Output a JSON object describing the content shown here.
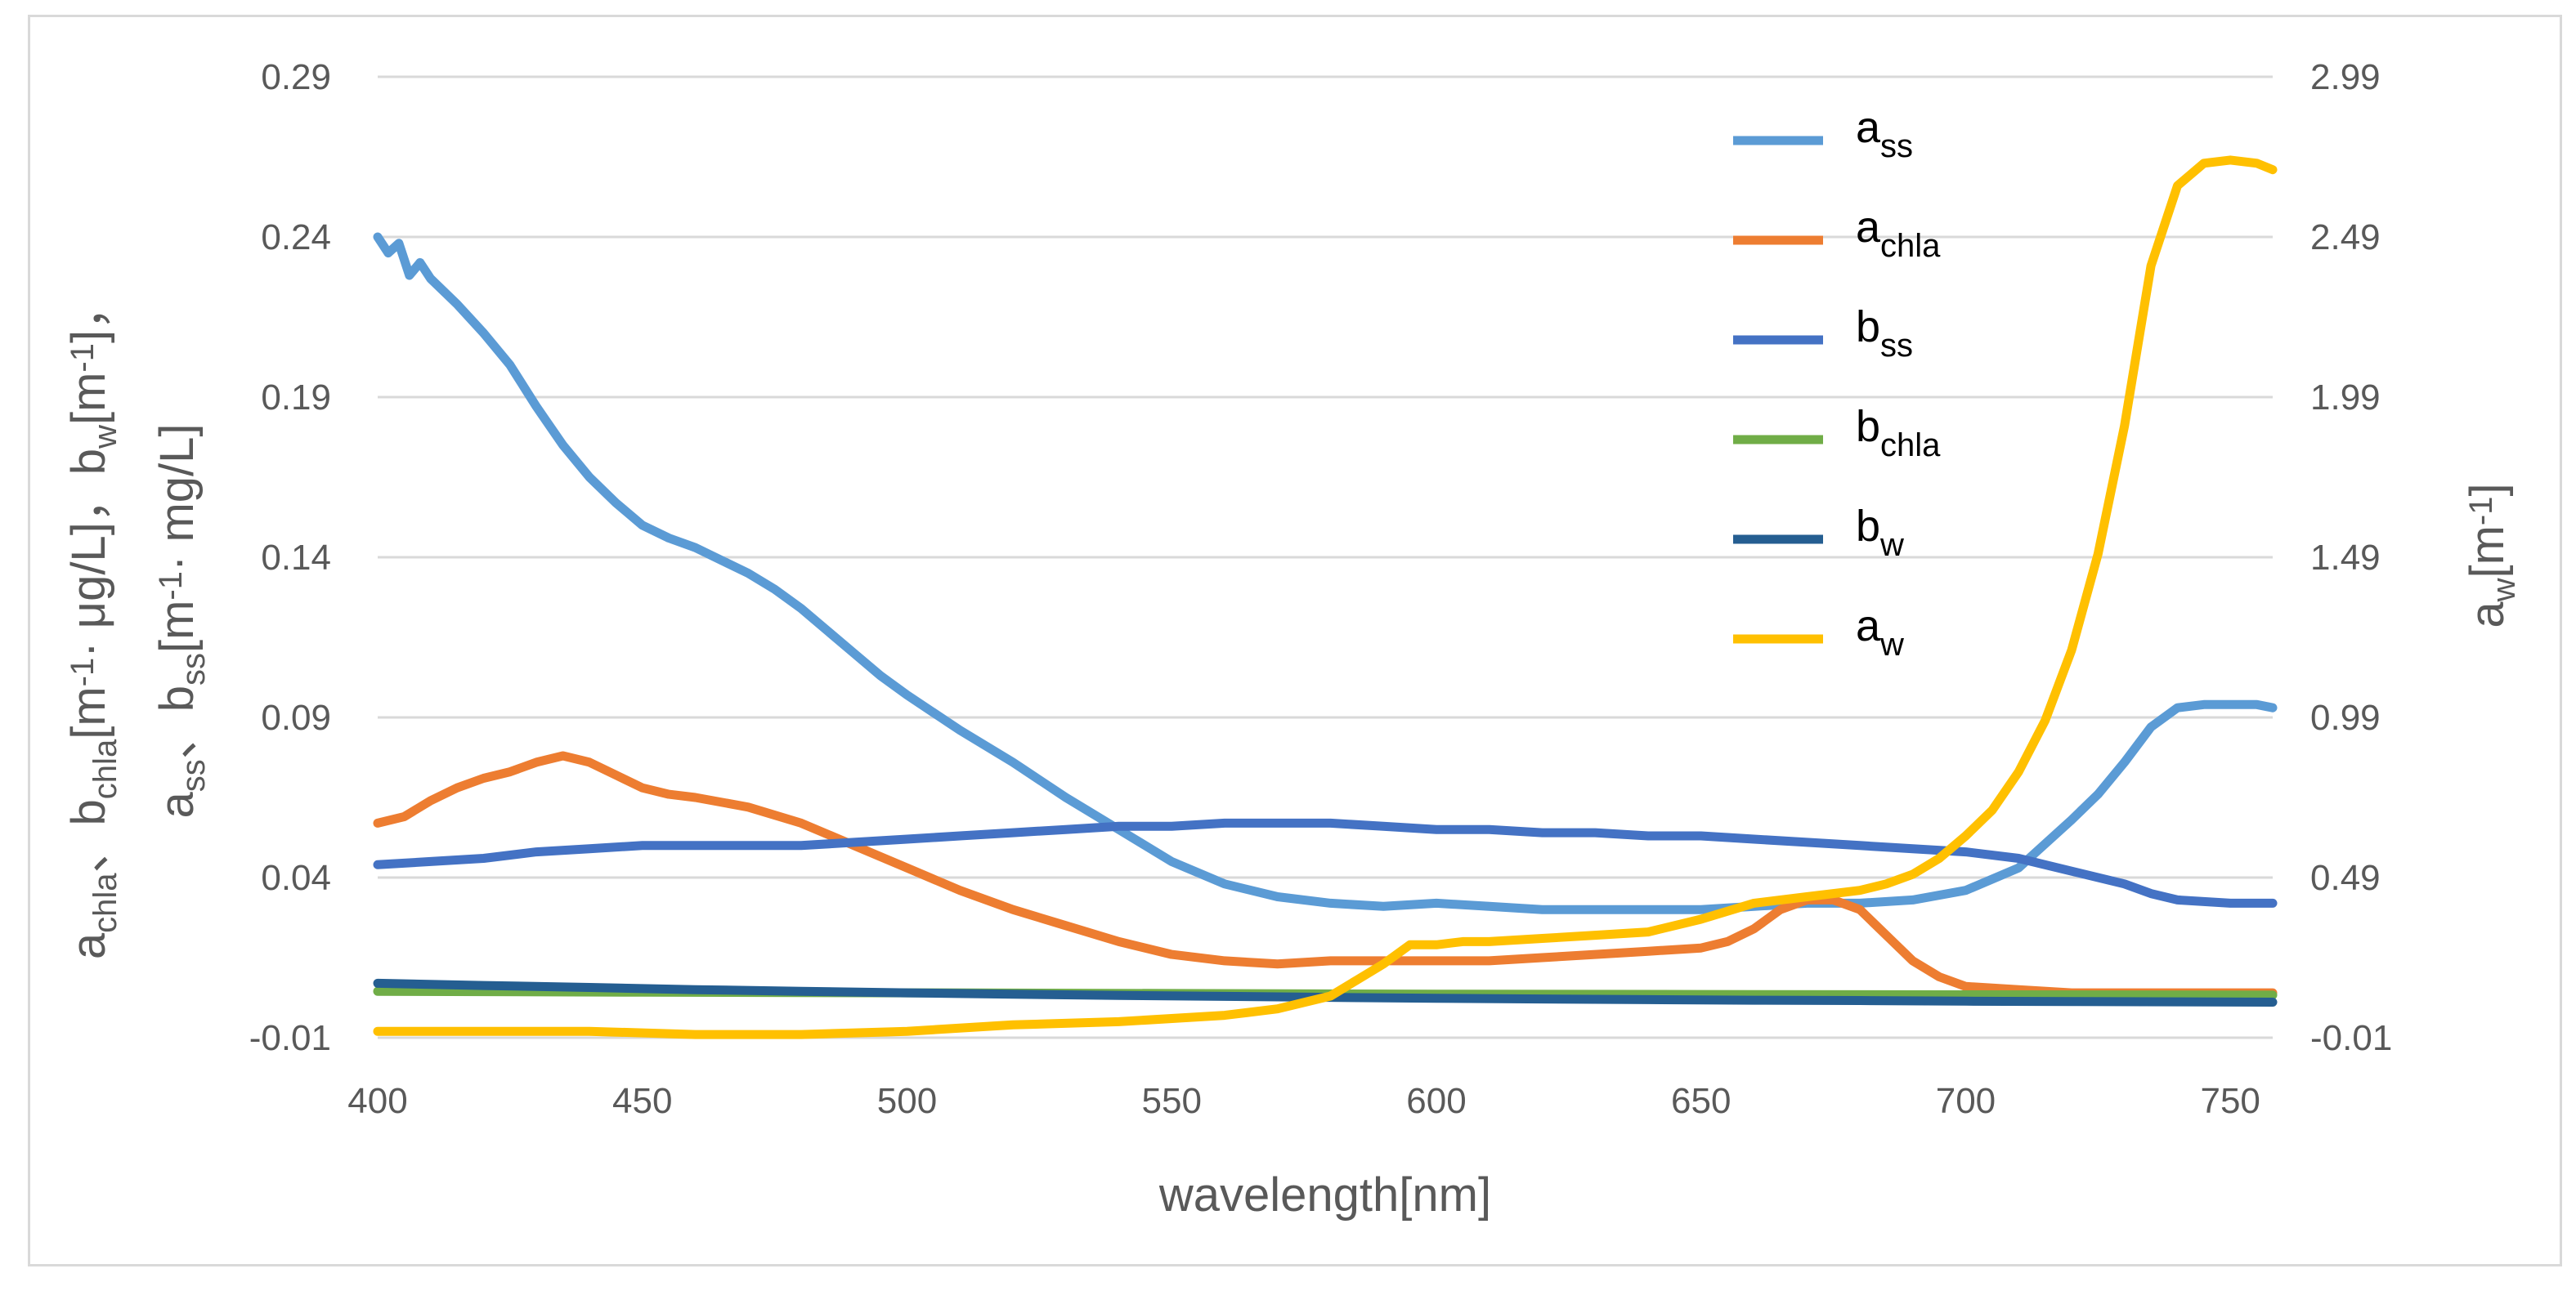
{
  "chart_data": {
    "type": "line",
    "title": "",
    "xlabel": "wavelength[nm]",
    "ylabel": {
      "parts": [
        {
          "t": "a"
        },
        {
          "t": "chla",
          "sub": true
        },
        {
          "t": "、b"
        },
        {
          "t": "chla",
          "sub": true
        },
        {
          "t": "[m"
        },
        {
          "t": "-1",
          "sup": true
        },
        {
          "t": "· μg/L]，b"
        },
        {
          "t": "w",
          "sub": true
        },
        {
          "t": "[m"
        },
        {
          "t": "-1",
          "sup": true
        },
        {
          "t": "]，"
        }
      ]
    },
    "ylabel2": {
      "parts": [
        {
          "t": "a"
        },
        {
          "t": "ss",
          "sub": true
        },
        {
          "t": "、b"
        },
        {
          "t": "ss",
          "sub": true
        },
        {
          "t": "[m"
        },
        {
          "t": "-1",
          "sup": true
        },
        {
          "t": "· mg/L]"
        }
      ]
    },
    "y2label": {
      "parts": [
        {
          "t": "a"
        },
        {
          "t": "w",
          "sub": true
        },
        {
          "t": "[m"
        },
        {
          "t": "-1",
          "sup": true
        },
        {
          "t": "]"
        }
      ]
    },
    "xlim": [
      400,
      758
    ],
    "ylim": [
      -0.01,
      0.29
    ],
    "y2lim": [
      -0.01,
      2.99
    ],
    "xticks": [
      "400",
      "450",
      "500",
      "550",
      "600",
      "650",
      "700",
      "750"
    ],
    "yticks": [
      "-0.01",
      "0.04",
      "0.09",
      "0.14",
      "0.19",
      "0.24",
      "0.29"
    ],
    "y2ticks": [
      "-0.01",
      "0.49",
      "0.99",
      "1.49",
      "1.99",
      "2.49",
      "2.99"
    ],
    "legend_position": "top-right",
    "series": [
      {
        "name": "a_ss",
        "label_main": "a",
        "label_sub": "ss",
        "axis": "left",
        "color": "#5b9bd5",
        "x": [
          400,
          402,
          404,
          406,
          408,
          410,
          415,
          420,
          425,
          430,
          435,
          440,
          445,
          450,
          455,
          460,
          465,
          470,
          475,
          480,
          485,
          490,
          495,
          500,
          510,
          520,
          530,
          540,
          550,
          560,
          570,
          580,
          590,
          600,
          610,
          620,
          630,
          640,
          650,
          660,
          670,
          680,
          690,
          700,
          710,
          720,
          725,
          730,
          735,
          740,
          745,
          750,
          755,
          758
        ],
        "y": [
          0.24,
          0.235,
          0.238,
          0.228,
          0.232,
          0.227,
          0.219,
          0.21,
          0.2,
          0.187,
          0.175,
          0.165,
          0.157,
          0.15,
          0.146,
          0.143,
          0.139,
          0.135,
          0.13,
          0.124,
          0.117,
          0.11,
          0.103,
          0.097,
          0.086,
          0.076,
          0.065,
          0.055,
          0.045,
          0.038,
          0.034,
          0.032,
          0.031,
          0.032,
          0.031,
          0.03,
          0.03,
          0.03,
          0.03,
          0.031,
          0.032,
          0.032,
          0.033,
          0.036,
          0.043,
          0.058,
          0.066,
          0.076,
          0.087,
          0.093,
          0.094,
          0.094,
          0.094,
          0.093
        ]
      },
      {
        "name": "a_chla",
        "label_main": "a",
        "label_sub": "chla",
        "axis": "left",
        "color": "#ed7d31",
        "x": [
          400,
          405,
          410,
          415,
          420,
          425,
          430,
          435,
          440,
          445,
          450,
          455,
          460,
          470,
          480,
          490,
          500,
          510,
          520,
          530,
          540,
          550,
          560,
          570,
          580,
          590,
          600,
          610,
          620,
          630,
          640,
          650,
          655,
          660,
          665,
          670,
          675,
          680,
          685,
          690,
          695,
          700,
          710,
          720,
          730,
          740,
          750,
          758
        ],
        "y": [
          0.057,
          0.059,
          0.064,
          0.068,
          0.071,
          0.073,
          0.076,
          0.078,
          0.076,
          0.072,
          0.068,
          0.066,
          0.065,
          0.062,
          0.057,
          0.05,
          0.043,
          0.036,
          0.03,
          0.025,
          0.02,
          0.016,
          0.014,
          0.013,
          0.014,
          0.014,
          0.014,
          0.014,
          0.015,
          0.016,
          0.017,
          0.018,
          0.02,
          0.024,
          0.03,
          0.033,
          0.033,
          0.03,
          0.022,
          0.014,
          0.009,
          0.006,
          0.005,
          0.004,
          0.004,
          0.004,
          0.004,
          0.004
        ]
      },
      {
        "name": "b_ss",
        "label_main": "b",
        "label_sub": "ss",
        "axis": "left",
        "color": "#4472c4",
        "x": [
          400,
          410,
          420,
          430,
          440,
          450,
          460,
          470,
          480,
          490,
          500,
          510,
          520,
          530,
          540,
          550,
          560,
          570,
          580,
          590,
          600,
          610,
          620,
          630,
          640,
          650,
          660,
          670,
          680,
          690,
          700,
          710,
          720,
          730,
          735,
          740,
          750,
          758
        ],
        "y": [
          0.044,
          0.045,
          0.046,
          0.048,
          0.049,
          0.05,
          0.05,
          0.05,
          0.05,
          0.051,
          0.052,
          0.053,
          0.054,
          0.055,
          0.056,
          0.056,
          0.057,
          0.057,
          0.057,
          0.056,
          0.055,
          0.055,
          0.054,
          0.054,
          0.053,
          0.053,
          0.052,
          0.051,
          0.05,
          0.049,
          0.048,
          0.046,
          0.042,
          0.038,
          0.035,
          0.033,
          0.032,
          0.032
        ]
      },
      {
        "name": "b_chla",
        "label_main": "b",
        "label_sub": "chla",
        "axis": "left",
        "color": "#70ad47",
        "x": [
          400,
          450,
          500,
          550,
          600,
          650,
          700,
          758
        ],
        "y": [
          0.0045,
          0.0042,
          0.004,
          0.0038,
          0.0036,
          0.0035,
          0.0034,
          0.0033
        ]
      },
      {
        "name": "b_w",
        "label_main": "b",
        "label_sub": "w",
        "axis": "left",
        "color": "#255e91",
        "x": [
          400,
          420,
          440,
          460,
          480,
          500,
          520,
          540,
          560,
          580,
          600,
          620,
          640,
          660,
          680,
          700,
          720,
          740,
          758
        ],
        "y": [
          0.007,
          0.0063,
          0.0057,
          0.005,
          0.0045,
          0.004,
          0.0036,
          0.0032,
          0.0029,
          0.0026,
          0.0023,
          0.0021,
          0.0019,
          0.0017,
          0.0016,
          0.0014,
          0.0013,
          0.0012,
          0.0011
        ]
      },
      {
        "name": "a_w",
        "label_main": "a",
        "label_sub": "w",
        "axis": "right",
        "color": "#ffc000",
        "x": [
          400,
          420,
          440,
          460,
          480,
          500,
          520,
          540,
          560,
          570,
          580,
          585,
          590,
          595,
          600,
          605,
          610,
          620,
          630,
          640,
          650,
          660,
          670,
          680,
          685,
          690,
          695,
          700,
          705,
          710,
          715,
          720,
          725,
          730,
          735,
          740,
          745,
          750,
          755,
          758
        ],
        "y": [
          0.01,
          0.01,
          0.01,
          0.0,
          0.0,
          0.01,
          0.03,
          0.04,
          0.06,
          0.08,
          0.12,
          0.17,
          0.22,
          0.28,
          0.28,
          0.29,
          0.29,
          0.3,
          0.31,
          0.32,
          0.36,
          0.41,
          0.43,
          0.45,
          0.47,
          0.5,
          0.55,
          0.62,
          0.7,
          0.82,
          0.98,
          1.2,
          1.5,
          1.9,
          2.4,
          2.65,
          2.72,
          2.73,
          2.72,
          2.7
        ]
      }
    ]
  }
}
